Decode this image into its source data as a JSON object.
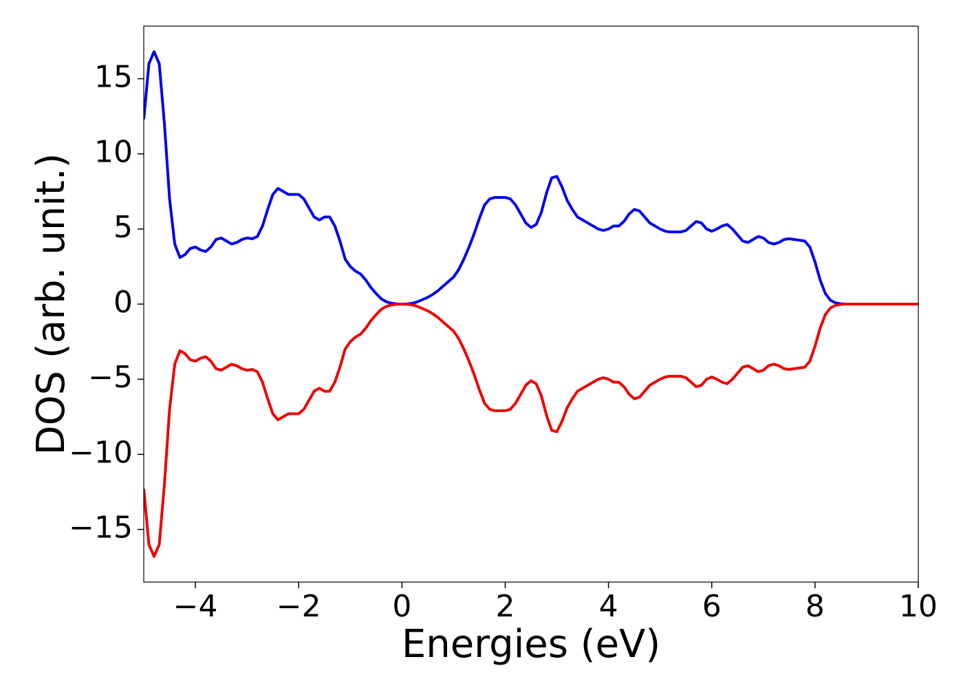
{
  "chart_data": {
    "type": "line",
    "x_label": "Energies (eV)",
    "y_label": "DOS (arb. unit.)",
    "xlim": [
      -5,
      10
    ],
    "ylim": [
      -18.5,
      18.5
    ],
    "xticks": [
      {
        "value": -4,
        "label": "−4"
      },
      {
        "value": -2,
        "label": "−2"
      },
      0,
      2,
      4,
      6,
      8,
      10
    ],
    "yticks": [
      {
        "value": -15,
        "label": "−15"
      },
      {
        "value": -10,
        "label": "−10"
      },
      {
        "value": -5,
        "label": "−5"
      },
      0,
      5,
      10,
      15
    ],
    "grid": false,
    "x": [
      -5.0,
      -4.9,
      -4.8,
      -4.7,
      -4.6,
      -4.5,
      -4.4,
      -4.3,
      -4.2,
      -4.1,
      -4.0,
      -3.9,
      -3.8,
      -3.7,
      -3.6,
      -3.5,
      -3.4,
      -3.3,
      -3.2,
      -3.1,
      -3.0,
      -2.9,
      -2.8,
      -2.7,
      -2.6,
      -2.5,
      -2.4,
      -2.3,
      -2.2,
      -2.1,
      -2.0,
      -1.9,
      -1.8,
      -1.7,
      -1.6,
      -1.5,
      -1.4,
      -1.3,
      -1.2,
      -1.1,
      -1.0,
      -0.9,
      -0.8,
      -0.7,
      -0.6,
      -0.5,
      -0.4,
      -0.3,
      -0.2,
      -0.1,
      0.0,
      0.1,
      0.2,
      0.3,
      0.4,
      0.5,
      0.6,
      0.7,
      0.8,
      0.9,
      1.0,
      1.1,
      1.2,
      1.3,
      1.4,
      1.5,
      1.6,
      1.7,
      1.8,
      1.9,
      2.0,
      2.1,
      2.2,
      2.3,
      2.4,
      2.5,
      2.6,
      2.7,
      2.8,
      2.9,
      3.0,
      3.1,
      3.2,
      3.3,
      3.4,
      3.5,
      3.6,
      3.7,
      3.8,
      3.9,
      4.0,
      4.1,
      4.2,
      4.3,
      4.4,
      4.5,
      4.6,
      4.7,
      4.8,
      4.9,
      5.0,
      5.1,
      5.2,
      5.3,
      5.4,
      5.5,
      5.6,
      5.7,
      5.8,
      5.9,
      6.0,
      6.1,
      6.2,
      6.3,
      6.4,
      6.5,
      6.6,
      6.7,
      6.8,
      6.9,
      7.0,
      7.1,
      7.2,
      7.3,
      7.4,
      7.5,
      7.6,
      7.7,
      7.8,
      7.9,
      8.0,
      8.1,
      8.2,
      8.3,
      8.4,
      8.5,
      8.6,
      9.0,
      9.5,
      10.0
    ],
    "series": [
      {
        "color": "#0000ee",
        "values": [
          12.3,
          16,
          16.8,
          16,
          12,
          7,
          4,
          3.1,
          3.3,
          3.7,
          3.8,
          3.6,
          3.5,
          3.8,
          4.3,
          4.4,
          4.2,
          4.0,
          4.1,
          4.3,
          4.4,
          4.35,
          4.5,
          5.2,
          6.3,
          7.3,
          7.7,
          7.5,
          7.3,
          7.3,
          7.3,
          7.0,
          6.4,
          5.8,
          5.6,
          5.8,
          5.8,
          5.2,
          4.2,
          3.0,
          2.5,
          2.2,
          2.0,
          1.6,
          1.1,
          0.7,
          0.35,
          0.15,
          0.05,
          0.01,
          0,
          0.01,
          0.05,
          0.15,
          0.3,
          0.45,
          0.65,
          0.9,
          1.2,
          1.5,
          1.8,
          2.3,
          3.0,
          3.8,
          4.7,
          5.7,
          6.6,
          7.0,
          7.1,
          7.1,
          7.1,
          7.0,
          6.6,
          6.0,
          5.4,
          5.1,
          5.3,
          6.1,
          7.4,
          8.4,
          8.5,
          7.8,
          6.9,
          6.3,
          5.8,
          5.6,
          5.4,
          5.2,
          5.0,
          4.9,
          5.0,
          5.2,
          5.2,
          5.5,
          6.0,
          6.3,
          6.2,
          5.8,
          5.4,
          5.2,
          5.0,
          4.85,
          4.8,
          4.8,
          4.8,
          4.9,
          5.2,
          5.5,
          5.4,
          5.0,
          4.85,
          5.0,
          5.2,
          5.3,
          5.0,
          4.6,
          4.2,
          4.1,
          4.3,
          4.5,
          4.4,
          4.1,
          4.0,
          4.1,
          4.3,
          4.35,
          4.3,
          4.25,
          4.2,
          3.8,
          2.8,
          1.6,
          0.7,
          0.25,
          0.08,
          0.02,
          0,
          0,
          0,
          0
        ]
      },
      {
        "color": "#ee0000",
        "values": [
          -12.3,
          -16,
          -16.8,
          -16,
          -12,
          -7,
          -4,
          -3.1,
          -3.3,
          -3.7,
          -3.8,
          -3.6,
          -3.5,
          -3.8,
          -4.3,
          -4.4,
          -4.2,
          -4.0,
          -4.1,
          -4.3,
          -4.4,
          -4.35,
          -4.5,
          -5.2,
          -6.3,
          -7.3,
          -7.7,
          -7.5,
          -7.3,
          -7.3,
          -7.3,
          -7.0,
          -6.4,
          -5.8,
          -5.6,
          -5.8,
          -5.8,
          -5.2,
          -4.2,
          -3.0,
          -2.5,
          -2.2,
          -2.0,
          -1.6,
          -1.1,
          -0.7,
          -0.35,
          -0.15,
          -0.05,
          -0.01,
          0,
          -0.01,
          -0.05,
          -0.15,
          -0.3,
          -0.45,
          -0.65,
          -0.9,
          -1.2,
          -1.5,
          -1.8,
          -2.3,
          -3.0,
          -3.8,
          -4.7,
          -5.7,
          -6.6,
          -7.0,
          -7.1,
          -7.1,
          -7.1,
          -7.0,
          -6.6,
          -6.0,
          -5.4,
          -5.1,
          -5.3,
          -6.1,
          -7.4,
          -8.4,
          -8.5,
          -7.8,
          -6.9,
          -6.3,
          -5.8,
          -5.6,
          -5.4,
          -5.2,
          -5.0,
          -4.9,
          -5.0,
          -5.2,
          -5.2,
          -5.5,
          -6.0,
          -6.3,
          -6.2,
          -5.8,
          -5.4,
          -5.2,
          -5.0,
          -4.85,
          -4.8,
          -4.8,
          -4.8,
          -4.9,
          -5.2,
          -5.5,
          -5.4,
          -5.0,
          -4.85,
          -5.0,
          -5.2,
          -5.3,
          -5.0,
          -4.6,
          -4.2,
          -4.1,
          -4.3,
          -4.5,
          -4.4,
          -4.1,
          -4.0,
          -4.1,
          -4.3,
          -4.35,
          -4.3,
          -4.25,
          -4.2,
          -3.8,
          -2.8,
          -1.6,
          -0.7,
          -0.25,
          -0.08,
          -0.02,
          0,
          0,
          0,
          0
        ]
      }
    ]
  }
}
